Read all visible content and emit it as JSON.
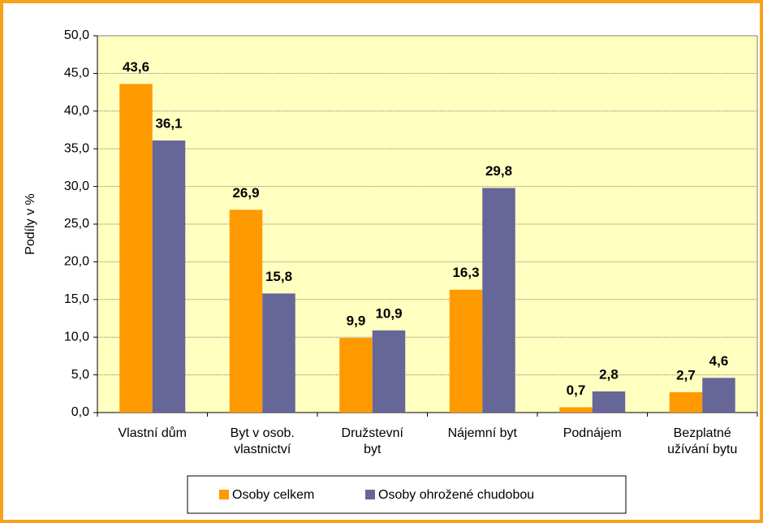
{
  "chart_data": {
    "type": "bar",
    "ylabel": "Podíly v %",
    "categories": [
      "Vlastní dům",
      "Byt v osob. vlastnictví",
      "Družstevní byt",
      "Nájemní byt",
      "Podnájem",
      "Bezplatné užívání bytu"
    ],
    "series": [
      {
        "name": "Osoby celkem",
        "color": "#ff9900",
        "values": [
          43.6,
          26.9,
          9.9,
          16.3,
          0.7,
          2.7
        ],
        "value_labels": [
          "43,6",
          "26,9",
          "9,9",
          "16,3",
          "0,7",
          "2,7"
        ]
      },
      {
        "name": "Osoby ohrožené chudobou",
        "color": "#666699",
        "values": [
          36.1,
          15.8,
          10.9,
          29.8,
          2.8,
          4.6
        ],
        "value_labels": [
          "36,1",
          "15,8",
          "10,9",
          "29,8",
          "2,8",
          "4,6"
        ]
      }
    ],
    "ylim": [
      0,
      50
    ],
    "yticks": [
      {
        "value": 0,
        "label": "0,0"
      },
      {
        "value": 5,
        "label": "5,0"
      },
      {
        "value": 10,
        "label": "10,0"
      },
      {
        "value": 15,
        "label": "15,0"
      },
      {
        "value": 20,
        "label": "20,0"
      },
      {
        "value": 25,
        "label": "25,0"
      },
      {
        "value": 30,
        "label": "30,0"
      },
      {
        "value": 35,
        "label": "35,0"
      },
      {
        "value": 40,
        "label": "40,0"
      },
      {
        "value": 45,
        "label": "45,0"
      },
      {
        "value": 50,
        "label": "50,0"
      }
    ],
    "grid": true,
    "legend": "bottom",
    "plot_background": "#ffffc0"
  }
}
